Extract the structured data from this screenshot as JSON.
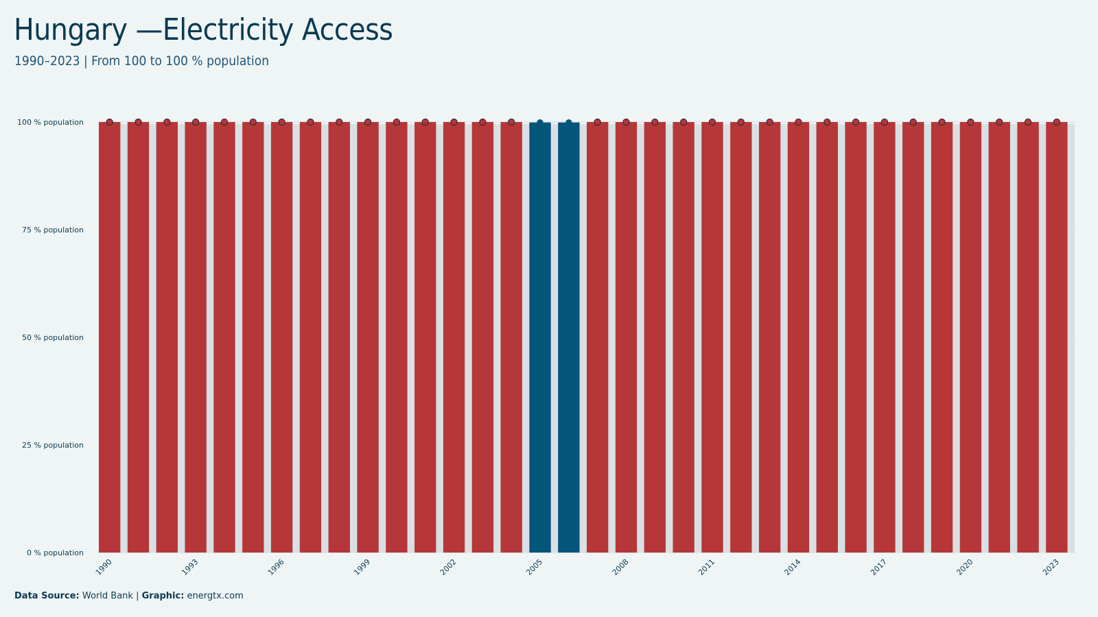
{
  "header": {
    "title": "Hungary —Electricity Access",
    "subtitle": "1990–2023 | From 100 to 100 % population"
  },
  "caption": {
    "source_label": "Data Source:",
    "source_value": "World Bank",
    "separator": "|",
    "graphic_label": "Graphic:",
    "graphic_value": "energtx.com"
  },
  "colors": {
    "background": "#eff5f5",
    "bar": "#b5373a",
    "bar_highlight": "#04557a",
    "bar_background": "#d9e0e3",
    "gridline": "#dde3e5",
    "text": "#0b3a52"
  },
  "chart_data": {
    "type": "bar",
    "x": [
      1990,
      1991,
      1992,
      1993,
      1994,
      1995,
      1996,
      1997,
      1998,
      1999,
      2000,
      2001,
      2002,
      2003,
      2004,
      2005,
      2006,
      2007,
      2008,
      2009,
      2010,
      2011,
      2012,
      2013,
      2014,
      2015,
      2016,
      2017,
      2018,
      2019,
      2020,
      2021,
      2022,
      2023
    ],
    "values": [
      100,
      100,
      100,
      100,
      100,
      100,
      100,
      100,
      100,
      100,
      100,
      100,
      100,
      100,
      100,
      99.9,
      99.9,
      100,
      100,
      100,
      100,
      100,
      100,
      100,
      100,
      100,
      100,
      100,
      100,
      100,
      100,
      100,
      100,
      100
    ],
    "highlight": [
      2005,
      2006
    ],
    "x_tick_labels": [
      "1990",
      "1993",
      "1996",
      "1999",
      "2002",
      "2005",
      "2008",
      "2011",
      "2014",
      "2017",
      "2020",
      "2023"
    ],
    "y_ticks": [
      0,
      25,
      50,
      75,
      100
    ],
    "y_tick_labels": [
      "0 % population",
      "25 % population",
      "50 % population",
      "75 % population",
      "100 % population"
    ],
    "ylim": [
      0,
      100
    ],
    "grid": "horizontal",
    "point_markers": true,
    "xlabel": "",
    "ylabel": ""
  }
}
